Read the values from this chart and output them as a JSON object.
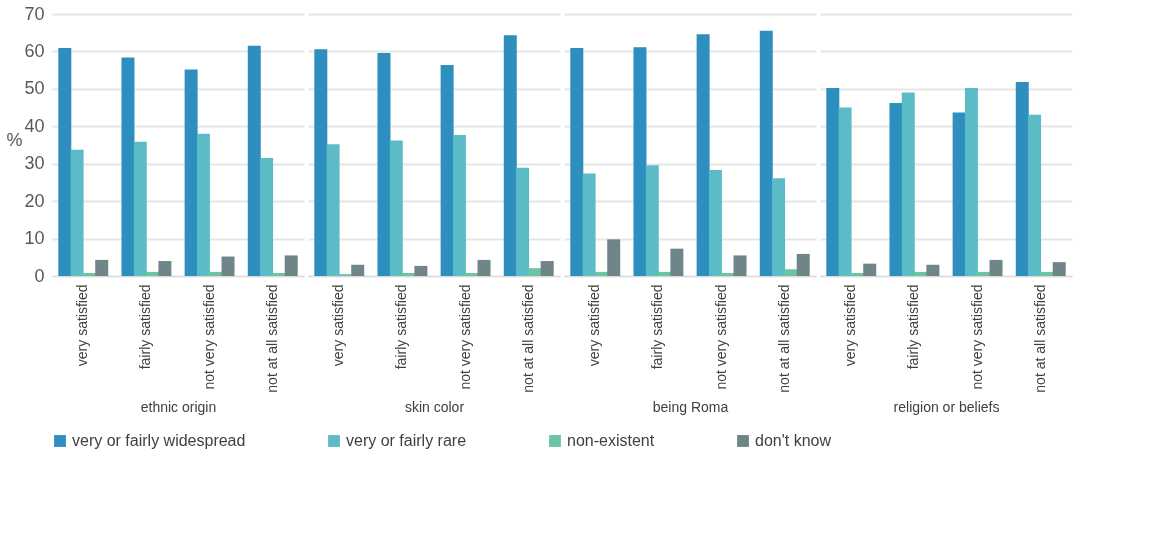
{
  "chart_data": [
    {
      "type": "bar",
      "xlabel": "ethnic origin",
      "ylabel": "%",
      "categories": [
        "very satisfied",
        "fairly satisfied",
        "not very satisfied",
        "not at all satisfied"
      ],
      "ylim": [
        0,
        70
      ],
      "yticks": [
        0,
        10,
        20,
        30,
        40,
        50,
        60,
        70
      ],
      "grid": "y",
      "legend": "bottom",
      "series": [
        {
          "name": "very or fairly widespread",
          "color": "#2e8fbe",
          "values": [
            60.9,
            58.4,
            55.2,
            61.5
          ]
        },
        {
          "name": "very or fairly rare",
          "color": "#5bbcc8",
          "values": [
            33.7,
            35.9,
            38.0,
            31.5
          ]
        },
        {
          "name": "non-existent",
          "color": "#6cc4a4",
          "values": [
            0.8,
            1.1,
            1.1,
            0.8
          ]
        },
        {
          "name": "don't know",
          "color": "#6f8587",
          "values": [
            4.3,
            4.0,
            5.2,
            5.5
          ]
        }
      ]
    },
    {
      "type": "bar",
      "xlabel": "skin color",
      "categories": [
        "very satisfied",
        "fairly satisfied",
        "not very satisfied",
        "not at all satisfied"
      ],
      "ylim": [
        0,
        70
      ],
      "yticks": [
        0,
        10,
        20,
        30,
        40,
        50,
        60,
        70
      ],
      "grid": "y",
      "legend": "bottom",
      "tick_labels": "x",
      "series": [
        {
          "name": "very or fairly widespread",
          "color": "#2e8fbe",
          "values": [
            60.6,
            59.6,
            56.4,
            64.3
          ]
        },
        {
          "name": "very or fairly rare",
          "color": "#5bbcc8",
          "values": [
            35.2,
            36.2,
            37.7,
            28.9
          ]
        },
        {
          "name": "non-existent",
          "color": "#6cc4a4",
          "values": [
            0.5,
            0.8,
            0.8,
            2.1
          ]
        },
        {
          "name": "don't know",
          "color": "#6f8587",
          "values": [
            3.0,
            2.7,
            4.3,
            4.0
          ]
        }
      ]
    },
    {
      "type": "bar",
      "xlabel": "being Roma",
      "categories": [
        "very satisfied",
        "fairly satisfied",
        "not very satisfied",
        "not at all satisfied"
      ],
      "ylim": [
        0,
        70
      ],
      "yticks": [
        0,
        10,
        20,
        30,
        40,
        50,
        60,
        70
      ],
      "grid": "y",
      "legend": "bottom",
      "tick_labels": "x",
      "series": [
        {
          "name": "very or fairly widespread",
          "color": "#2e8fbe",
          "values": [
            60.9,
            61.1,
            64.6,
            65.5
          ]
        },
        {
          "name": "very or fairly rare",
          "color": "#5bbcc8",
          "values": [
            27.4,
            29.6,
            28.3,
            26.1
          ]
        },
        {
          "name": "non-existent",
          "color": "#6cc4a4",
          "values": [
            1.1,
            1.1,
            0.8,
            1.8
          ]
        },
        {
          "name": "don't know",
          "color": "#6f8587",
          "values": [
            9.8,
            7.3,
            5.5,
            5.9
          ]
        }
      ]
    },
    {
      "type": "bar",
      "xlabel": "religion or beliefs",
      "categories": [
        "very satisfied",
        "fairly satisfied",
        "not very satisfied",
        "not at all satisfied"
      ],
      "ylim": [
        0,
        70
      ],
      "yticks": [
        0,
        10,
        20,
        30,
        40,
        50,
        60,
        70
      ],
      "grid": "y",
      "legend": "bottom",
      "tick_labels": "x",
      "series": [
        {
          "name": "very or fairly widespread",
          "color": "#2e8fbe",
          "values": [
            50.2,
            46.2,
            43.7,
            51.8
          ]
        },
        {
          "name": "very or fairly rare",
          "color": "#5bbcc8",
          "values": [
            45.0,
            49.0,
            50.2,
            43.1
          ]
        },
        {
          "name": "non-existent",
          "color": "#6cc4a4",
          "values": [
            0.8,
            1.1,
            1.1,
            1.1
          ]
        },
        {
          "name": "don't know",
          "color": "#6f8587",
          "values": [
            3.3,
            3.0,
            4.3,
            3.7
          ]
        }
      ]
    }
  ]
}
